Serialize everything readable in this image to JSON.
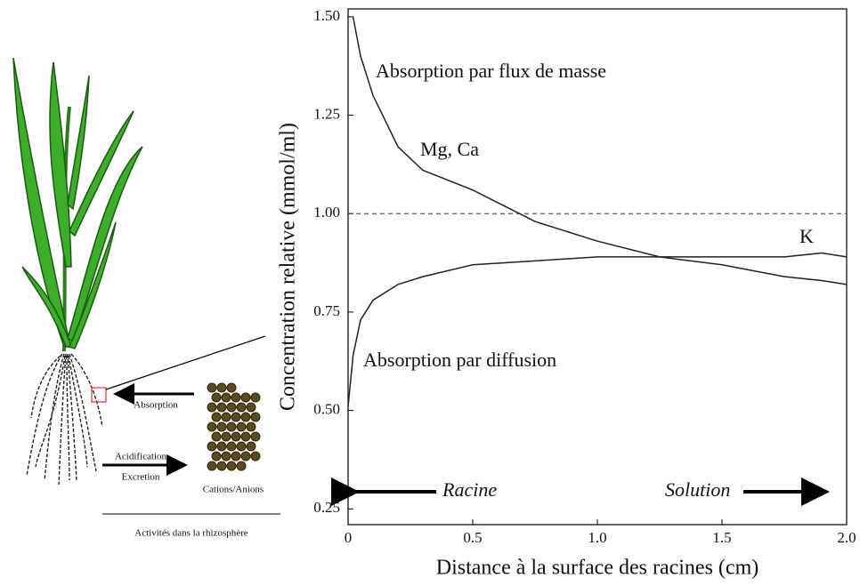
{
  "chart_data": {
    "type": "line",
    "x_label": "Distance à la surface des racines (cm)",
    "y_label": "Concentration relative (mmol/ml)",
    "x": [
      0,
      0.02,
      0.05,
      0.1,
      0.2,
      0.3,
      0.5,
      0.75,
      1.0,
      1.25,
      1.5,
      1.75,
      1.9,
      2.0
    ],
    "series": [
      {
        "name": "Mg, Ca",
        "color": "#222222",
        "values": [
          null,
          1.5,
          1.4,
          1.3,
          1.17,
          1.11,
          1.06,
          0.98,
          0.93,
          0.89,
          0.87,
          0.84,
          0.83,
          0.82
        ]
      },
      {
        "name": "K",
        "color": "#222222",
        "values": [
          0.51,
          0.64,
          0.73,
          0.78,
          0.82,
          0.84,
          0.87,
          0.88,
          0.89,
          0.89,
          0.89,
          0.89,
          0.9,
          0.89
        ]
      }
    ],
    "xlim": [
      0,
      2.0
    ],
    "ylim": [
      0.21,
      1.52
    ],
    "xticks": [
      0,
      0.5,
      {
        "value": 1.0,
        "label": "1.0"
      },
      1.5,
      {
        "value": 2.0,
        "label": "2.0"
      }
    ],
    "yticks": [
      0.25,
      {
        "value": 0.5,
        "label": "0.50"
      },
      0.75,
      {
        "value": 1.0,
        "label": "1.00"
      },
      1.25,
      {
        "value": 1.5,
        "label": "1.50"
      }
    ],
    "reference_line": 1.0,
    "grid": false,
    "annotations": [
      "Absorption par flux de masse",
      "Absorption par diffusion",
      "Racine",
      "Solution"
    ]
  },
  "illustration": {
    "absorption": "Absorption",
    "acidification": "Acidification",
    "excretion": "Excretion",
    "ions": "Cations/Anions",
    "caption": "Activités dans la rhizosphère"
  }
}
